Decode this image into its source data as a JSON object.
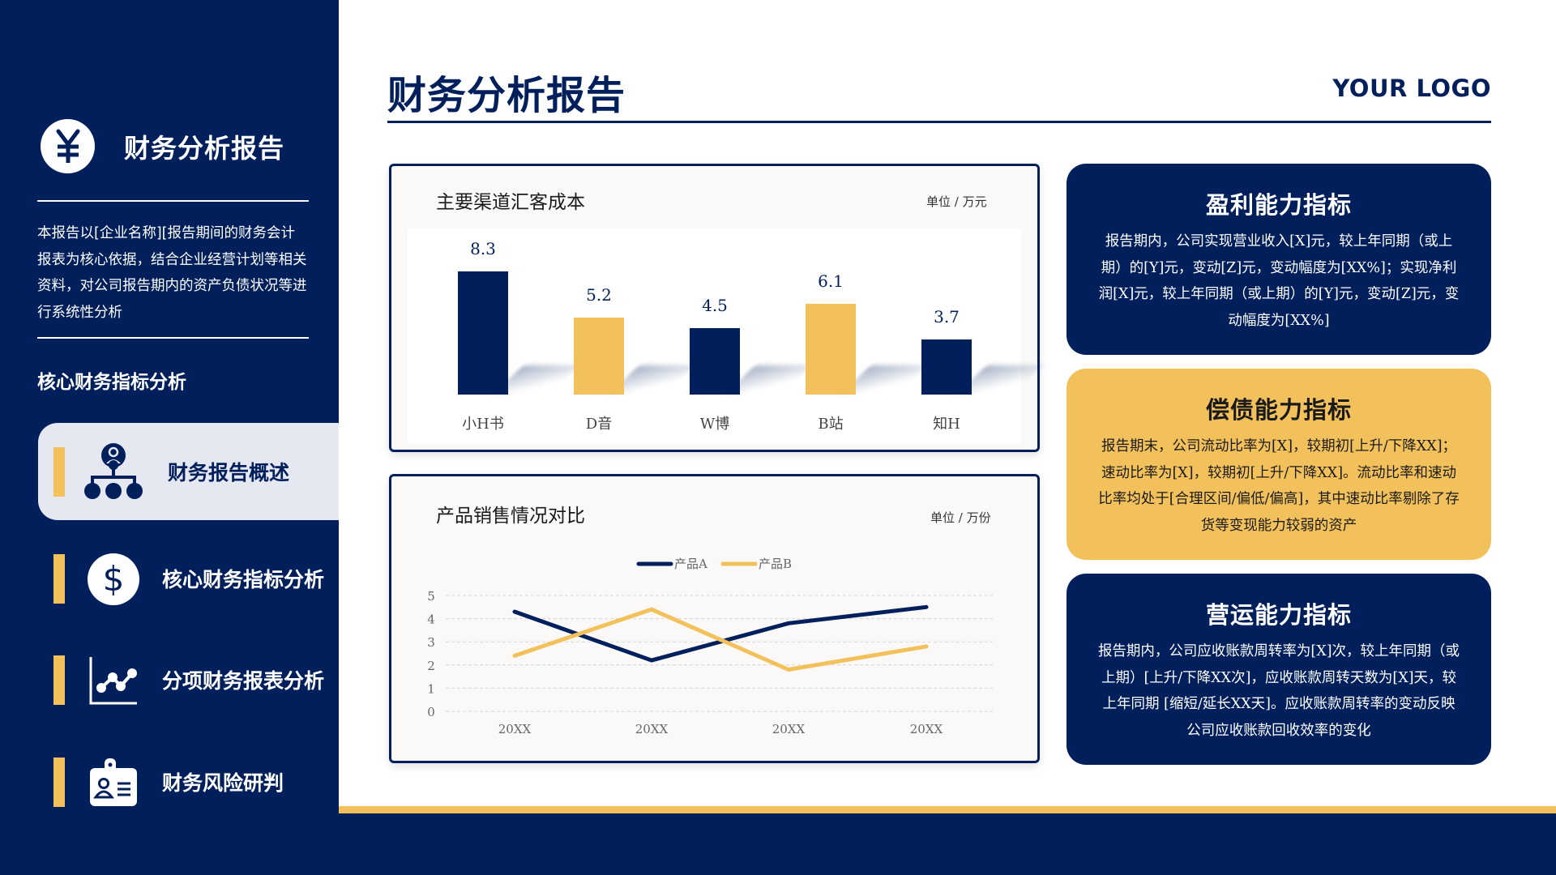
{
  "sidebar": {
    "title": "财务分析报告",
    "brand_icon": "yen-icon",
    "description": "本报告以[企业名称][报告期间的财务会计报表为核心依据，结合企业经营计划等相关资料，对公司报告期内的资产负债状况等进行系统性分析",
    "section_heading": "核心财务指标分析",
    "nav_items": [
      {
        "label": "财务报告概述",
        "icon": "org-chart-icon",
        "active": true
      },
      {
        "label": "核心财务指标分析",
        "icon": "dollar-icon",
        "active": false
      },
      {
        "label": "分项财务报表分析",
        "icon": "line-chart-icon",
        "active": false
      },
      {
        "label": "财务风险研判",
        "icon": "id-badge-icon",
        "active": false
      }
    ]
  },
  "header": {
    "title": "财务分析报告",
    "logo": "YOUR LOGO"
  },
  "colors": {
    "navy": "#001f5b",
    "gold": "#f3c15c",
    "active_nav_bg": "#e5e8f1",
    "card_bg": "#faf9f8"
  },
  "bar_card": {
    "title": "主要渠道汇客成本",
    "unit": "单位 / 万元"
  },
  "line_card": {
    "title": "产品销售情况对比",
    "unit": "单位 / 万份"
  },
  "info_cards": [
    {
      "title": "盈利能力指标",
      "body": "报告期内，公司实现营业收入[X]元，较上年同期（或上期）的[Y]元，变动[Z]元，变动幅度为[XX%]；实现净利润[X]元，较上年同期（或上期）的[Y]元，变动[Z]元，变动幅度为[XX%]"
    },
    {
      "title": "偿债能力指标",
      "body": "报告期末，公司流动比率为[X]，较期初[上升/下降XX]；速动比率为[X]，较期初[上升/下降XX]。流动比率和速动比率均处于[合理区间/偏低/偏高]，其中速动比率剔除了存货等变现能力较弱的资产"
    },
    {
      "title": "营运能力指标",
      "body": "报告期内，公司应收账款周转率为[X]次，较上年同期（或上期）[上升/下降XX次]，应收账款周转天数为[X]天，较上年同期 [缩短/延长XX天]。应收账款周转率的变动反映公司应收账款回收效率的变化"
    }
  ],
  "chart_data": [
    {
      "type": "bar",
      "title": "主要渠道汇客成本",
      "subtitle": "单位 / 万元",
      "categories": [
        "小H书",
        "D音",
        "W博",
        "B站",
        "知H"
      ],
      "values": [
        8.3,
        5.2,
        4.5,
        6.1,
        3.7
      ],
      "colors": [
        "#001f5b",
        "#f3c15c",
        "#001f5b",
        "#f3c15c",
        "#001f5b"
      ],
      "data_labels": [
        "8.3",
        "5.2",
        "4.5",
        "6.1",
        "3.7"
      ],
      "xlabel": "",
      "ylabel": "",
      "grid": false,
      "legend": "none"
    },
    {
      "type": "line",
      "title": "产品销售情况对比",
      "subtitle": "单位 / 万份",
      "categories": [
        "20XX",
        "20XX",
        "20XX",
        "20XX"
      ],
      "series": [
        {
          "name": "产品A",
          "color": "#001f5b",
          "values": [
            4.3,
            2.2,
            3.8,
            4.5
          ]
        },
        {
          "name": "产品B",
          "color": "#f3c15c",
          "values": [
            2.4,
            4.4,
            1.8,
            2.8
          ]
        }
      ],
      "yticks": [
        "0",
        "1",
        "2",
        "3",
        "4",
        "5"
      ],
      "ylim": [
        0,
        5
      ],
      "xlabel": "",
      "ylabel": "",
      "grid": true,
      "legend_position": "top"
    }
  ]
}
